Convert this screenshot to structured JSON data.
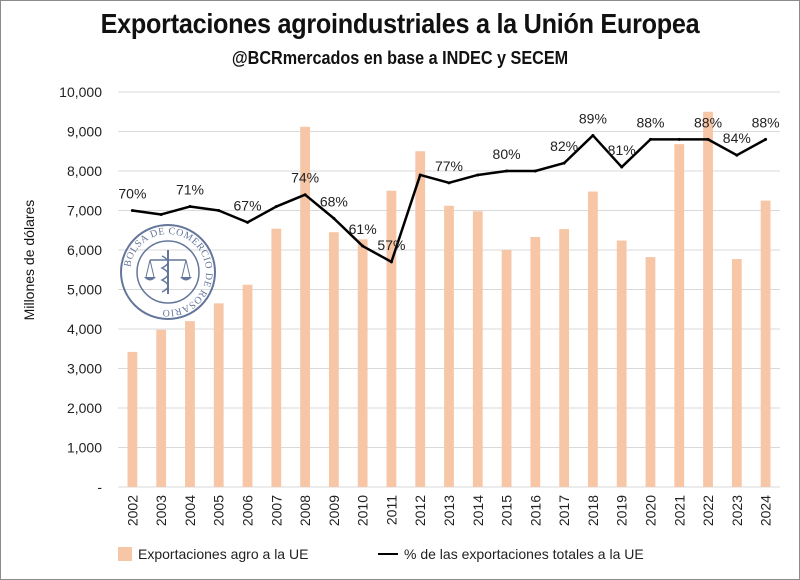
{
  "title": "Exportaciones agroindustriales a la Unión Europea",
  "subtitle": "@BCRmercados en base a INDEC y SECEM",
  "colors": {
    "bars": "#f7c6a6",
    "line": "#000000",
    "grid": "#d9d9d9"
  },
  "watermark": {
    "text": "BOLSA DE COMERCIO DE ROSARIO"
  },
  "chart_data": {
    "type": "bar",
    "title": "Exportaciones agroindustriales a la Unión Europea",
    "ylabel": "Millones de dólares",
    "xlabel": "",
    "ylim": [
      0,
      10000
    ],
    "yticks": [
      0,
      1000,
      2000,
      3000,
      4000,
      5000,
      6000,
      7000,
      8000,
      9000,
      10000
    ],
    "ytick_labels": [
      "-",
      "1,000",
      "2,000",
      "3,000",
      "4,000",
      "5,000",
      "6,000",
      "7,000",
      "8,000",
      "9,000",
      "10,000"
    ],
    "grid": true,
    "legend_position": "bottom",
    "categories": [
      "2002",
      "2003",
      "2004",
      "2005",
      "2006",
      "2007",
      "2008",
      "2009",
      "2010",
      "2011",
      "2012",
      "2013",
      "2014",
      "2015",
      "2016",
      "2017",
      "2018",
      "2019",
      "2020",
      "2021",
      "2022",
      "2023",
      "2024"
    ],
    "series": [
      {
        "name": "Exportaciones agro a la UE",
        "type": "bar",
        "values": [
          3420,
          3980,
          4200,
          4650,
          5120,
          6540,
          9120,
          6450,
          6270,
          7500,
          8500,
          7120,
          6980,
          6000,
          6330,
          6530,
          7480,
          6240,
          5820,
          8680,
          9500,
          5770,
          7250
        ]
      },
      {
        "name": "% de las exportaciones totales a la UE",
        "type": "line",
        "values": [
          70,
          69,
          71,
          70,
          67,
          71,
          74,
          68,
          61,
          57,
          79,
          77,
          79,
          80,
          80,
          82,
          89,
          81,
          88,
          88,
          88,
          84,
          88
        ],
        "labels": [
          "70%",
          "",
          "71%",
          "",
          "67%",
          "",
          "74%",
          "68%",
          "61%",
          "57%",
          "",
          "77%",
          "",
          "80%",
          "",
          "82%",
          "89%",
          "81%",
          "88%",
          "",
          "88%",
          "84%",
          "88%"
        ]
      }
    ]
  }
}
